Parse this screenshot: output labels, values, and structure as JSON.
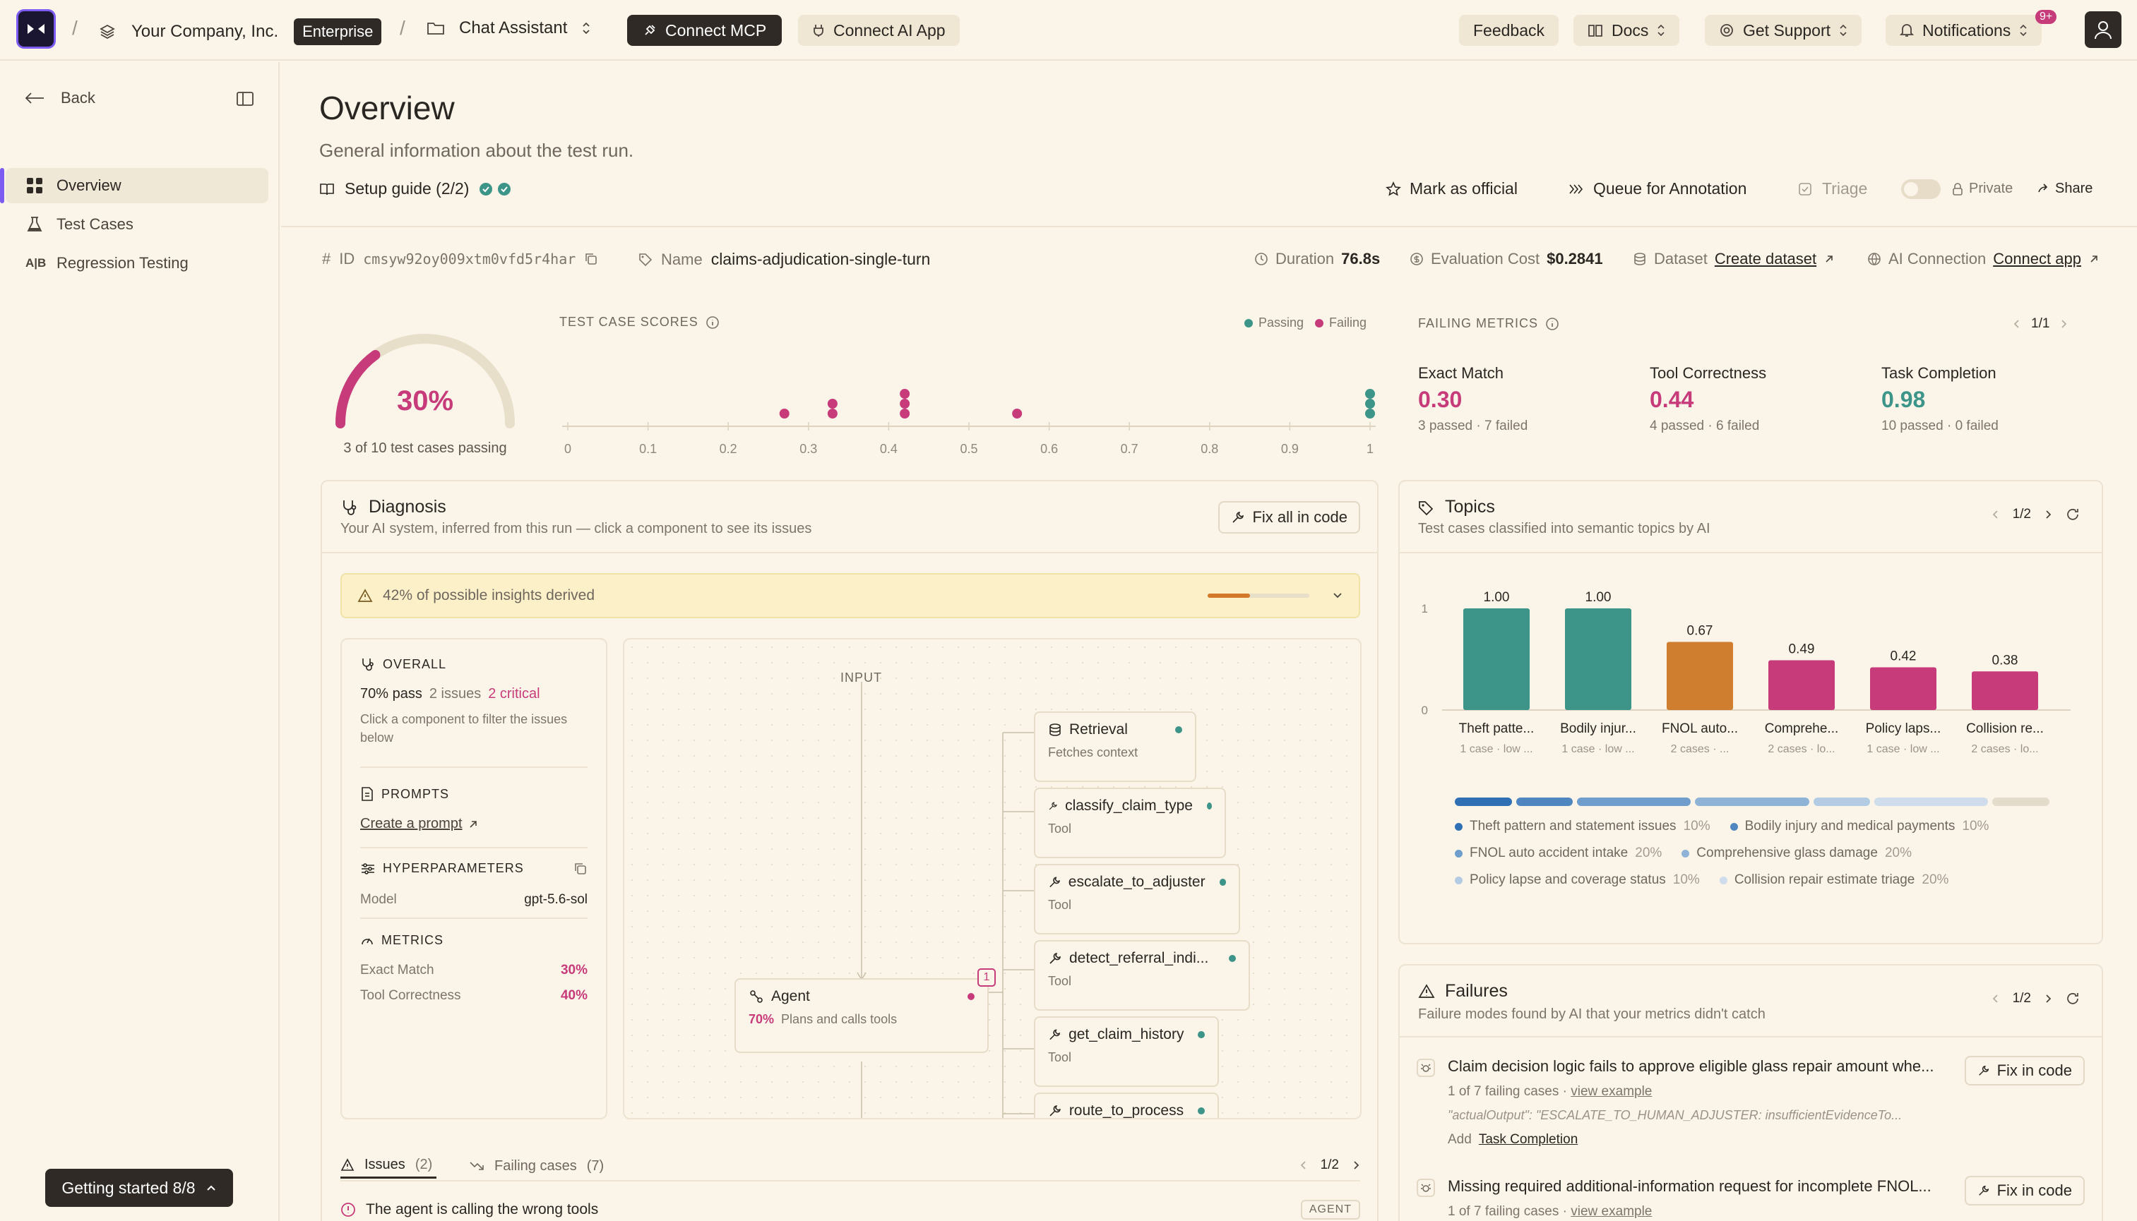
{
  "topbar": {
    "company": "Your Company, Inc.",
    "plan_badge": "Enterprise",
    "project": "Chat Assistant",
    "connect_mcp": "Connect MCP",
    "connect_ai_app": "Connect AI App",
    "feedback": "Feedback",
    "docs": "Docs",
    "get_support": "Get Support",
    "notifications": "Notifications",
    "notifications_badge": "9+"
  },
  "sidebar": {
    "back": "Back",
    "items": [
      {
        "label": "Overview",
        "icon": "grid-icon"
      },
      {
        "label": "Test Cases",
        "icon": "flask-icon"
      },
      {
        "label": "Regression Testing",
        "icon": "ab-icon"
      }
    ],
    "ab_glyph": "A|B",
    "getting_started": "Getting started 8/8"
  },
  "header": {
    "title": "Overview",
    "subtitle": "General information about the test run.",
    "setup_guide": "Setup guide (2/2)",
    "mark_official": "Mark as official",
    "queue_annotation": "Queue for Annotation",
    "triage": "Triage",
    "private": "Private",
    "share": "Share"
  },
  "meta": {
    "id_label": "ID",
    "id_value": "cmsyw92oy009xtm0vfd5r4har",
    "name_label": "Name",
    "name_value": "claims-adjudication-single-turn",
    "duration_label": "Duration",
    "duration_value": "76.8s",
    "cost_label": "Evaluation Cost",
    "cost_value": "$0.2841",
    "dataset_label": "Dataset",
    "dataset_link": "Create dataset",
    "ai_conn_label": "AI Connection",
    "ai_conn_link": "Connect app"
  },
  "score": {
    "percent_text": "30%",
    "pass_fraction": 0.3,
    "caption": "3 of 10 test cases passing"
  },
  "test_case_scores": {
    "title": "TEST CASE SCORES",
    "legend_passing": "Passing",
    "legend_failing": "Failing",
    "ticks": [
      "0",
      "0.1",
      "0.2",
      "0.3",
      "0.4",
      "0.5",
      "0.6",
      "0.7",
      "0.8",
      "0.9",
      "1"
    ],
    "points": [
      {
        "x": 0.27,
        "stack": 0,
        "status": "failing"
      },
      {
        "x": 0.33,
        "stack": 0,
        "status": "failing"
      },
      {
        "x": 0.33,
        "stack": 1,
        "status": "failing"
      },
      {
        "x": 0.42,
        "stack": 0,
        "status": "failing"
      },
      {
        "x": 0.42,
        "stack": 1,
        "status": "failing"
      },
      {
        "x": 0.42,
        "stack": 2,
        "status": "failing"
      },
      {
        "x": 0.56,
        "stack": 0,
        "status": "failing"
      },
      {
        "x": 1.0,
        "stack": 0,
        "status": "passing"
      },
      {
        "x": 1.0,
        "stack": 1,
        "status": "passing"
      },
      {
        "x": 1.0,
        "stack": 2,
        "status": "passing"
      }
    ]
  },
  "failing_metrics": {
    "title": "FAILING METRICS",
    "pager": "1/1",
    "items": [
      {
        "name": "Exact Match",
        "value": "0.30",
        "detail": "3 passed · 7 failed",
        "status": "fail"
      },
      {
        "name": "Tool Correctness",
        "value": "0.44",
        "detail": "4 passed · 6 failed",
        "status": "fail"
      },
      {
        "name": "Task Completion",
        "value": "0.98",
        "detail": "10 passed · 0 failed",
        "status": "pass"
      }
    ]
  },
  "diagnosis": {
    "title": "Diagnosis",
    "subtitle": "Your AI system, inferred from this run — click a component to see its issues",
    "fix_all": "Fix all in code",
    "insights_pct": "42%",
    "insights_text": "of possible insights derived",
    "insights_fraction": 0.42,
    "overall_title": "OVERALL",
    "overall_pass": "70% pass",
    "overall_issues": "2 issues",
    "overall_critical": "2 critical",
    "overall_hint": "Click a component to filter the issues below",
    "prompts_title": "PROMPTS",
    "prompts_link": "Create a prompt",
    "hyper_title": "HYPERPARAMETERS",
    "model_label": "Model",
    "model_value": "gpt-5.6-sol",
    "metrics_title": "METRICS",
    "metrics": [
      {
        "name": "Exact Match",
        "value": "30%"
      },
      {
        "name": "Tool Correctness",
        "value": "40%"
      }
    ],
    "input_label": "INPUT",
    "agent_title": "Agent",
    "agent_pct": "70%",
    "agent_sub": "Plans and calls tools",
    "agent_badge": "1",
    "nodes": [
      {
        "title": "Retrieval",
        "sub": "Fetches context",
        "icon": "database-icon"
      },
      {
        "title": "classify_claim_type",
        "sub": "Tool",
        "icon": "wrench-icon"
      },
      {
        "title": "escalate_to_adjuster",
        "sub": "Tool",
        "icon": "wrench-icon"
      },
      {
        "title": "detect_referral_indi...",
        "sub": "Tool",
        "icon": "wrench-icon"
      },
      {
        "title": "get_claim_history",
        "sub": "Tool",
        "icon": "wrench-icon"
      },
      {
        "title": "route_to_process",
        "sub": "",
        "icon": "wrench-icon"
      }
    ],
    "tab_issues": "Issues",
    "tab_issues_count": "(2)",
    "tab_failing": "Failing cases",
    "tab_failing_count": "(7)",
    "issues_pager": "1/2",
    "issue_first": "The agent is calling the wrong tools",
    "issue_first_tag": "AGENT"
  },
  "topics": {
    "title": "Topics",
    "subtitle": "Test cases classified into semantic topics by AI",
    "pager": "1/2",
    "chart_data": {
      "type": "bar",
      "categories": [
        "Theft patte...",
        "Bodily injur...",
        "FNOL auto...",
        "Comprehe...",
        "Policy laps...",
        "Collision re..."
      ],
      "values": [
        1.0,
        1.0,
        0.67,
        0.49,
        0.42,
        0.38
      ],
      "value_labels": [
        "1.00",
        "1.00",
        "0.67",
        "0.49",
        "0.42",
        "0.38"
      ],
      "subs": [
        "1 case · low ...",
        "1 case · low ...",
        "2 cases · ...",
        "2 cases · lo...",
        "1 case · low ...",
        "2 cases · lo..."
      ],
      "colors": [
        "#3d9488",
        "#3d9488",
        "#cf7d2e",
        "#c73b7a",
        "#c73b7a",
        "#c73b7a"
      ],
      "ylim": [
        0,
        1
      ],
      "yticks": [
        "1",
        "0"
      ]
    },
    "distribution": [
      {
        "share": 10,
        "color": "#2f6fb3"
      },
      {
        "share": 10,
        "color": "#4f86c0"
      },
      {
        "share": 20,
        "color": "#6f9dcc"
      },
      {
        "share": 20,
        "color": "#8fb3d7"
      },
      {
        "share": 10,
        "color": "#b3cbe3"
      },
      {
        "share": 20,
        "color": "#cfdceb"
      },
      {
        "share": 10,
        "color": "#e4dccb"
      }
    ],
    "legend": [
      {
        "label": "Theft pattern and statement issues",
        "pct": "10%",
        "color": "#2f6fb3"
      },
      {
        "label": "Bodily injury and medical payments",
        "pct": "10%",
        "color": "#4f86c0"
      },
      {
        "label": "FNOL auto accident intake",
        "pct": "20%",
        "color": "#6f9dcc"
      },
      {
        "label": "Comprehensive glass damage",
        "pct": "20%",
        "color": "#8fb3d7"
      },
      {
        "label": "Policy lapse and coverage status",
        "pct": "10%",
        "color": "#b3cbe3"
      },
      {
        "label": "Collision repair estimate triage",
        "pct": "20%",
        "color": "#cfdceb"
      }
    ]
  },
  "failures": {
    "title": "Failures",
    "subtitle": "Failure modes found by AI that your metrics didn't catch",
    "pager": "1/2",
    "fix_label": "Fix in code",
    "items": [
      {
        "title": "Claim decision logic fails to approve eligible glass repair amount whe...",
        "meta": "1 of 7 failing cases · ",
        "link": "view example",
        "quote": "\"actualOutput\": \"ESCALATE_TO_HUMAN_ADJUSTER: insufficientEvidenceTo...",
        "add_label": "Add",
        "add_link": "Task Completion"
      },
      {
        "title": "Missing required additional-information request for incomplete FNOL...",
        "meta": "1 of 7 failing cases · ",
        "link": "view example"
      }
    ]
  }
}
